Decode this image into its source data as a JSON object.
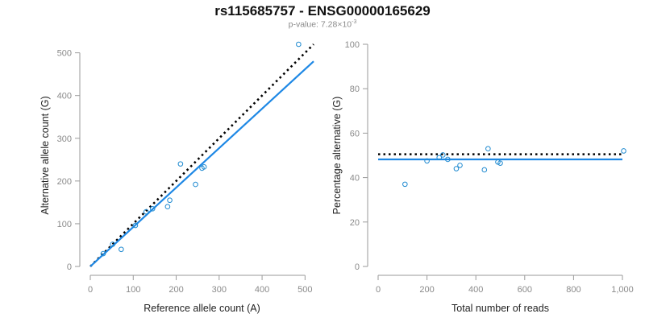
{
  "header": {
    "title": "rs115685757 - ENSG00000165629",
    "pvalue_prefix": "p-value: 7.28×10",
    "pvalue_exponent": "-3"
  },
  "colors": {
    "points": "#1f8ad0",
    "fit_line": "#1e88e5",
    "reference_line": "#000000",
    "axis": "#9a9a9a"
  },
  "chart_data": [
    {
      "type": "scatter",
      "xlabel": "Reference allele count (A)",
      "ylabel": "Alternative allele count (G)",
      "xlim": [
        0,
        520
      ],
      "ylim": [
        0,
        520
      ],
      "xticks": [
        0,
        100,
        200,
        300,
        400,
        500
      ],
      "xtick_labels": [
        "0",
        "100",
        "200",
        "300",
        "400",
        "500"
      ],
      "yticks": [
        0,
        100,
        200,
        300,
        400,
        500
      ],
      "ytick_labels": [
        "0",
        "100",
        "200",
        "300",
        "400",
        "500"
      ],
      "points": [
        {
          "x": 30,
          "y": 30
        },
        {
          "x": 52,
          "y": 52
        },
        {
          "x": 72,
          "y": 40
        },
        {
          "x": 105,
          "y": 96
        },
        {
          "x": 130,
          "y": 128
        },
        {
          "x": 145,
          "y": 135
        },
        {
          "x": 180,
          "y": 140
        },
        {
          "x": 185,
          "y": 155
        },
        {
          "x": 210,
          "y": 240
        },
        {
          "x": 245,
          "y": 192
        },
        {
          "x": 260,
          "y": 230
        },
        {
          "x": 265,
          "y": 233
        },
        {
          "x": 485,
          "y": 520
        }
      ],
      "reference_line": {
        "x": [
          0,
          520
        ],
        "y": [
          0,
          520
        ],
        "style": "dotted"
      },
      "fit_line": {
        "x": [
          0,
          520
        ],
        "y": [
          0,
          480
        ],
        "style": "solid"
      },
      "grid": false
    },
    {
      "type": "scatter",
      "xlabel": "Total number of reads",
      "ylabel": "Percentage alternative (G)",
      "xlim": [
        0,
        1000
      ],
      "ylim": [
        0,
        100
      ],
      "xticks": [
        0,
        200,
        400,
        600,
        800,
        1000
      ],
      "xtick_labels": [
        "0",
        "200",
        "400",
        "600",
        "800",
        "1,000"
      ],
      "yticks": [
        0,
        20,
        40,
        60,
        80,
        100
      ],
      "ytick_labels": [
        "0",
        "20",
        "40",
        "60",
        "80",
        "100"
      ],
      "points": [
        {
          "x": 110,
          "y": 37
        },
        {
          "x": 200,
          "y": 47.5
        },
        {
          "x": 250,
          "y": 49
        },
        {
          "x": 265,
          "y": 50.2
        },
        {
          "x": 285,
          "y": 48.2
        },
        {
          "x": 320,
          "y": 44
        },
        {
          "x": 335,
          "y": 45.5
        },
        {
          "x": 435,
          "y": 43.5
        },
        {
          "x": 450,
          "y": 53
        },
        {
          "x": 490,
          "y": 47
        },
        {
          "x": 500,
          "y": 46.5
        },
        {
          "x": 1005,
          "y": 52
        }
      ],
      "reference_line": {
        "x": [
          0,
          1000
        ],
        "y": [
          50.5,
          50.5
        ],
        "style": "dotted"
      },
      "fit_line": {
        "x": [
          0,
          1000
        ],
        "y": [
          48.2,
          48.2
        ],
        "style": "solid"
      },
      "grid": false
    }
  ]
}
